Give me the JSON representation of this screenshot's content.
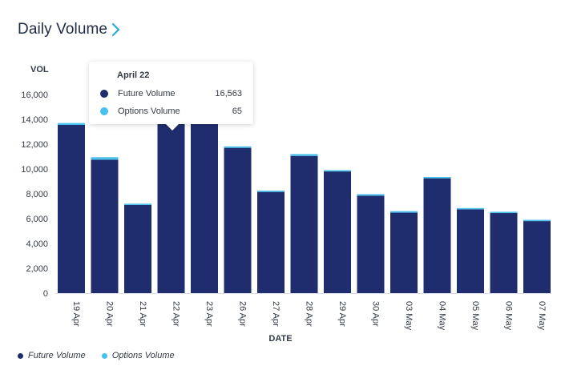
{
  "header": {
    "title": "Daily Volume"
  },
  "colors": {
    "future": "#1f2d6e",
    "options": "#47c1ec",
    "accent": "#2fa8e0"
  },
  "chart_data": {
    "type": "bar",
    "stacked": true,
    "categories": [
      "19 Apr",
      "20 Apr",
      "21 Apr",
      "22 Apr",
      "23 Apr",
      "26 Apr",
      "27 Apr",
      "28 Apr",
      "29 Apr",
      "30 Apr",
      "03 May",
      "04 May",
      "05 May",
      "06 May",
      "07 May"
    ],
    "series": [
      {
        "name": "Future Volume",
        "values": [
          13550,
          10750,
          7100,
          16563,
          15800,
          11700,
          8150,
          11050,
          9800,
          7850,
          6480,
          9250,
          6750,
          6450,
          5800
        ]
      },
      {
        "name": "Options Volume",
        "values": [
          150,
          200,
          60,
          65,
          80,
          120,
          60,
          150,
          50,
          120,
          120,
          50,
          60,
          60,
          50
        ]
      }
    ],
    "ylabel": "VOL",
    "xlabel": "DATE",
    "ylim": [
      0,
      16000
    ],
    "yticks": [
      0,
      2000,
      4000,
      6000,
      8000,
      10000,
      12000,
      14000,
      16000
    ],
    "ytick_labels": [
      "0",
      "2,000",
      "4,000",
      "6,000",
      "8,000",
      "10,000",
      "12,000",
      "14,000",
      "16,000"
    ],
    "grid": true,
    "legend_position": "bottom-left"
  },
  "tooltip": {
    "date": "April 22",
    "rows": [
      {
        "label": "Future Volume",
        "value": "16,563"
      },
      {
        "label": "Options Volume",
        "value": "65"
      }
    ]
  },
  "legend": [
    {
      "label": "Future Volume"
    },
    {
      "label": "Options Volume"
    }
  ]
}
